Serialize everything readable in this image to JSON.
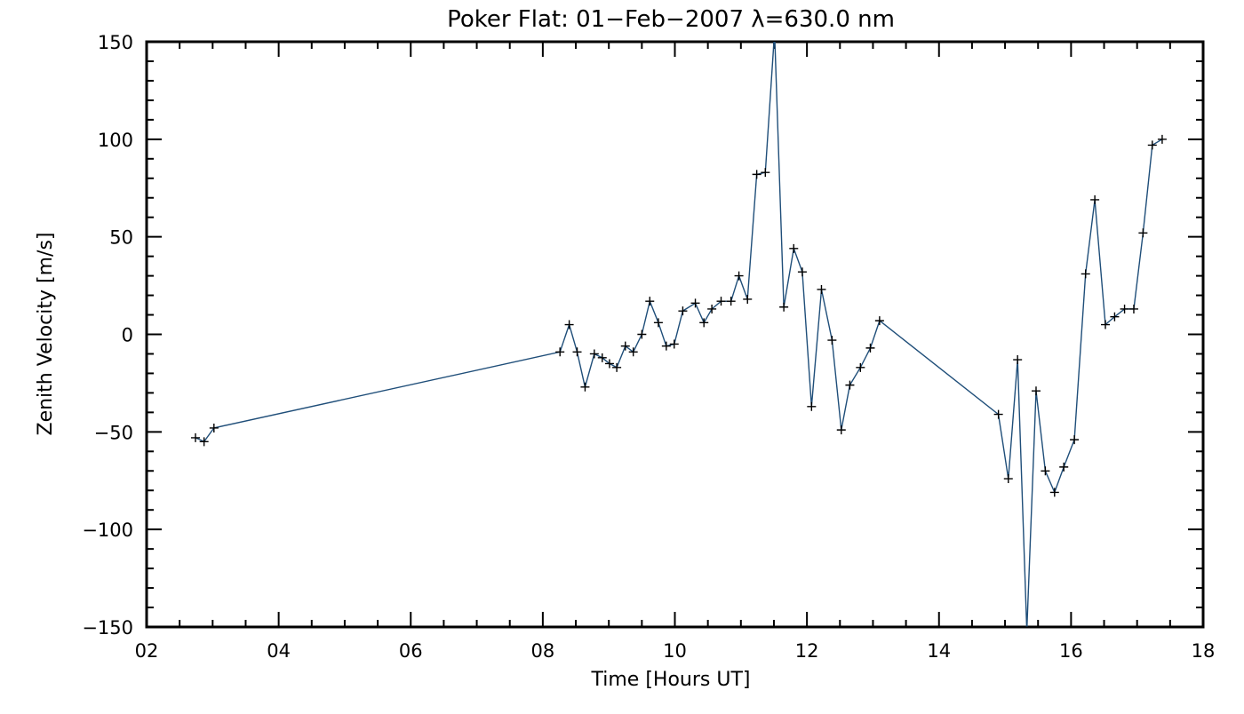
{
  "chart_data": {
    "type": "line",
    "title": "Poker Flat: 01−Feb−2007 λ=630.0 nm",
    "xlabel": "Time [Hours UT]",
    "ylabel": "Zenith Velocity [m/s]",
    "xlim": [
      2,
      18
    ],
    "ylim": [
      -150,
      150
    ],
    "x_ticks": [
      {
        "value": 2,
        "label": "02"
      },
      {
        "value": 4,
        "label": "04"
      },
      {
        "value": 6,
        "label": "06"
      },
      {
        "value": 8,
        "label": "08"
      },
      {
        "value": 10,
        "label": "10"
      },
      {
        "value": 12,
        "label": "12"
      },
      {
        "value": 14,
        "label": "14"
      },
      {
        "value": 16,
        "label": "16"
      },
      {
        "value": 18,
        "label": "18"
      }
    ],
    "y_ticks": [
      {
        "value": -150,
        "label": "−150"
      },
      {
        "value": -100,
        "label": "−100"
      },
      {
        "value": -50,
        "label": "−50"
      },
      {
        "value": 0,
        "label": "0"
      },
      {
        "value": 50,
        "label": "50"
      },
      {
        "value": 100,
        "label": "100"
      },
      {
        "value": 150,
        "label": "150"
      }
    ],
    "grid": false,
    "legend": "none",
    "line_color": "#1f4e79",
    "marker": "+",
    "series": [
      {
        "x": [
          2.74,
          2.87,
          3.02,
          8.26,
          8.4,
          8.52,
          8.64,
          8.78,
          8.9,
          9.01,
          9.12,
          9.25,
          9.37,
          9.5,
          9.62,
          9.75,
          9.87,
          9.99,
          10.12,
          10.31,
          10.44,
          10.56,
          10.7,
          10.85,
          10.97,
          11.1,
          11.24,
          11.37,
          11.51,
          11.65,
          11.8,
          11.93,
          12.07,
          12.22,
          12.38,
          12.52,
          12.65,
          12.81,
          12.96,
          13.1,
          14.9,
          15.05,
          15.19,
          15.33,
          15.47,
          15.61,
          15.75,
          15.89,
          16.05,
          16.22,
          16.36,
          16.52,
          16.66,
          16.81,
          16.95,
          17.09,
          17.23,
          17.38
        ],
        "y": [
          -53,
          -55,
          -48,
          -9,
          5,
          -9,
          -27,
          -10,
          -12,
          -15,
          -17,
          -6,
          -9,
          0,
          17,
          6,
          -6,
          -5,
          12,
          16,
          6,
          13,
          17,
          17,
          30,
          18,
          82,
          83,
          155,
          14,
          44,
          32,
          -37,
          23,
          -3,
          -49,
          -26,
          -17,
          -7,
          7,
          -41,
          -74,
          -13,
          -152,
          -29,
          -70,
          -81,
          -68,
          -54,
          31,
          69,
          5,
          9,
          13,
          13,
          52,
          97,
          100
        ]
      }
    ]
  }
}
